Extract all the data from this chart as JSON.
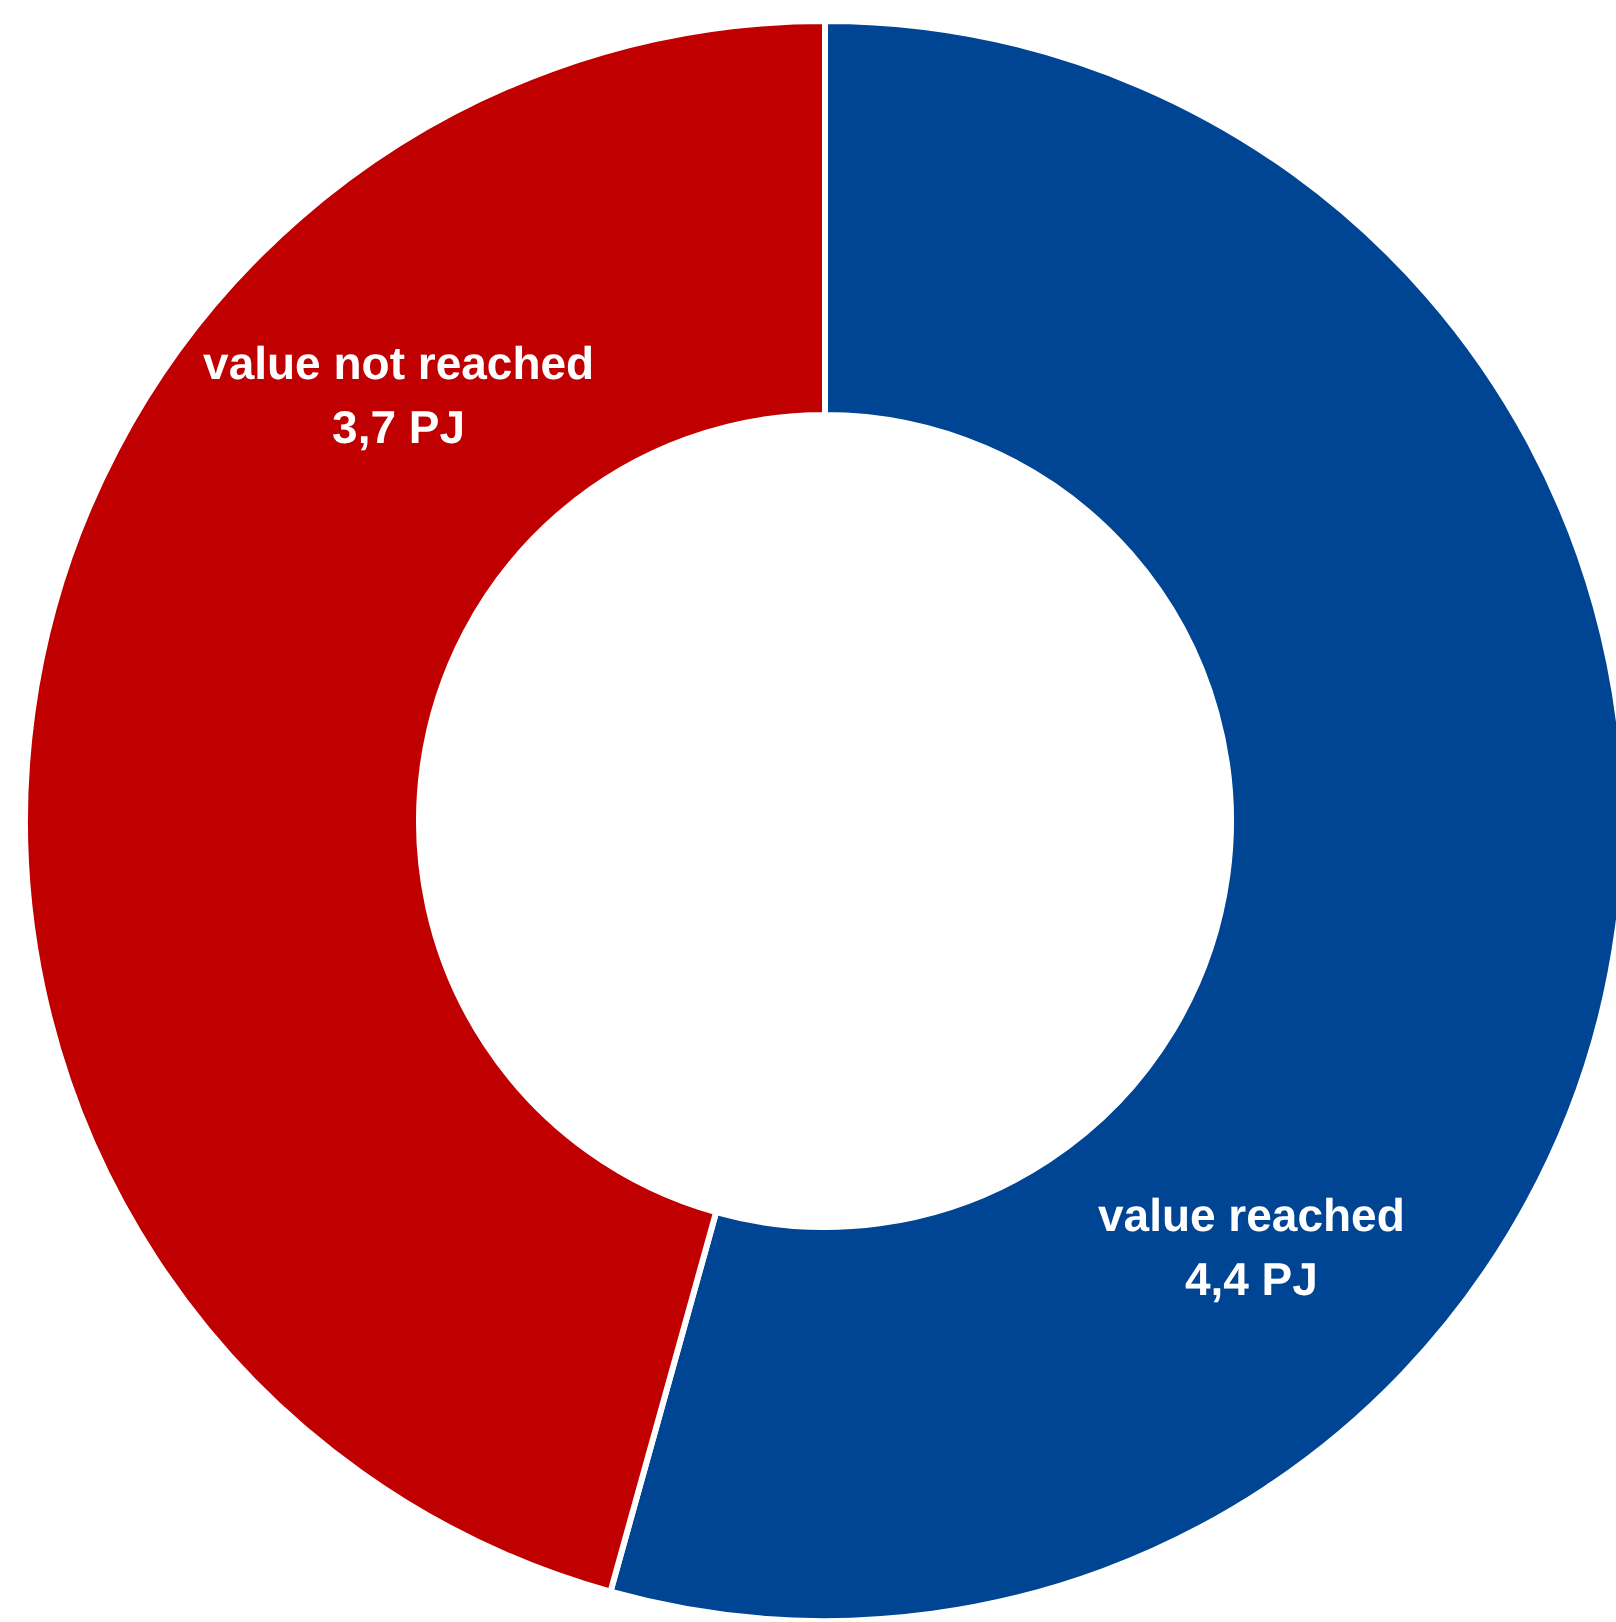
{
  "chart_data": {
    "type": "donut",
    "categories": [
      "value reached",
      "value not reached"
    ],
    "values": [
      4.4,
      3.7
    ],
    "colors": [
      "#004494",
      "#c00000"
    ],
    "value_labels": [
      "4,4 PJ",
      "3,7 PJ"
    ]
  }
}
